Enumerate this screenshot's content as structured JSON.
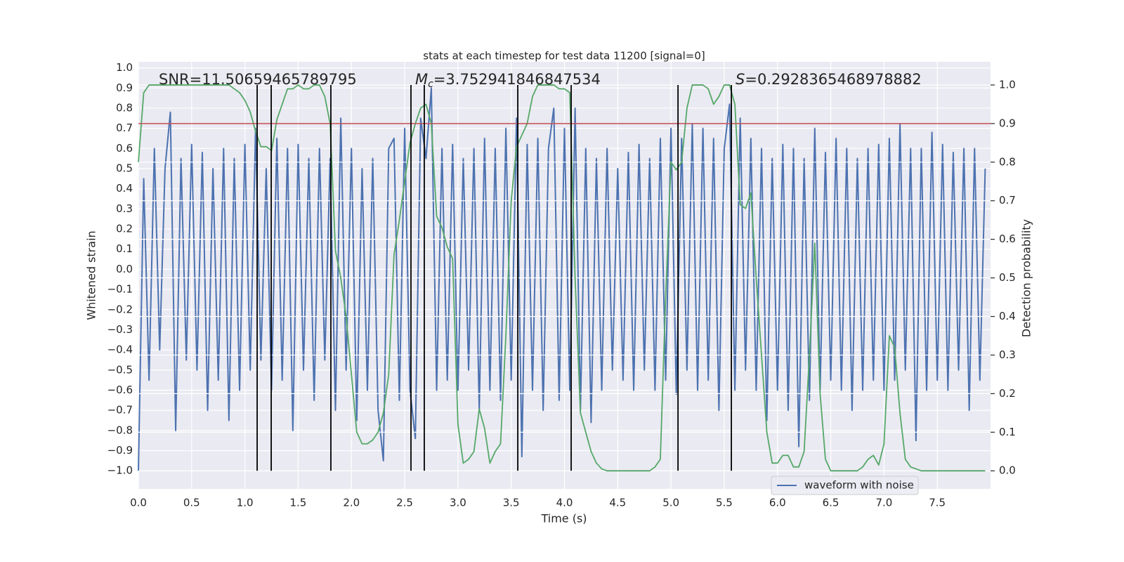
{
  "chart_data": {
    "type": "line",
    "title": "stats at each timestep for test data 11200 [signal=0]",
    "xlabel": "Time (s)",
    "ylabel": "Whitened strain",
    "y2label": "Detection probability",
    "xlim": [
      0,
      8
    ],
    "ylim": [
      -1.09,
      1.03
    ],
    "y2lim": [
      -0.047,
      1.06
    ],
    "xticks": [
      {
        "value": 0,
        "label": "0.0"
      },
      {
        "value": 0.5,
        "label": "0.5"
      },
      {
        "value": 1,
        "label": "1.0"
      },
      {
        "value": 1.5,
        "label": "1.5"
      },
      {
        "value": 2,
        "label": "2.0"
      },
      {
        "value": 2.5,
        "label": "2.5"
      },
      {
        "value": 3,
        "label": "3.0"
      },
      {
        "value": 3.5,
        "label": "3.5"
      },
      {
        "value": 4,
        "label": "4.0"
      },
      {
        "value": 4.5,
        "label": "4.5"
      },
      {
        "value": 5,
        "label": "5.0"
      },
      {
        "value": 5.5,
        "label": "5.5"
      },
      {
        "value": 6,
        "label": "6.0"
      },
      {
        "value": 6.5,
        "label": "6.5"
      },
      {
        "value": 7,
        "label": "7.0"
      },
      {
        "value": 7.5,
        "label": "7.5"
      }
    ],
    "yticks": [
      {
        "value": -1.0,
        "label": "−1.0"
      },
      {
        "value": -0.9,
        "label": "−0.9"
      },
      {
        "value": -0.8,
        "label": "−0.8"
      },
      {
        "value": -0.7,
        "label": "−0.7"
      },
      {
        "value": -0.6,
        "label": "−0.6"
      },
      {
        "value": -0.5,
        "label": "−0.5"
      },
      {
        "value": -0.4,
        "label": "−0.4"
      },
      {
        "value": -0.3,
        "label": "−0.3"
      },
      {
        "value": -0.2,
        "label": "−0.2"
      },
      {
        "value": -0.1,
        "label": "−0.1"
      },
      {
        "value": 0,
        "label": "0.0"
      },
      {
        "value": 0.1,
        "label": "0.1"
      },
      {
        "value": 0.2,
        "label": "0.2"
      },
      {
        "value": 0.3,
        "label": "0.3"
      },
      {
        "value": 0.4,
        "label": "0.4"
      },
      {
        "value": 0.5,
        "label": "0.5"
      },
      {
        "value": 0.6,
        "label": "0.6"
      },
      {
        "value": 0.7,
        "label": "0.7"
      },
      {
        "value": 0.8,
        "label": "0.8"
      },
      {
        "value": 0.9,
        "label": "0.9"
      },
      {
        "value": 1.0,
        "label": "1.0"
      }
    ],
    "y2ticks": [
      {
        "value": 0,
        "label": "0.0"
      },
      {
        "value": 0.1,
        "label": "0.1"
      },
      {
        "value": 0.2,
        "label": "0.2"
      },
      {
        "value": 0.3,
        "label": "0.3"
      },
      {
        "value": 0.4,
        "label": "0.4"
      },
      {
        "value": 0.5,
        "label": "0.5"
      },
      {
        "value": 0.6,
        "label": "0.6"
      },
      {
        "value": 0.7,
        "label": "0.7"
      },
      {
        "value": 0.8,
        "label": "0.8"
      },
      {
        "value": 0.9,
        "label": "0.9"
      },
      {
        "value": 1.0,
        "label": "1.0"
      }
    ],
    "grid": true,
    "legend": "lower right",
    "x": [
      0,
      0.05,
      0.1,
      0.15,
      0.2,
      0.25,
      0.3,
      0.35,
      0.4,
      0.45,
      0.5,
      0.55,
      0.6,
      0.65,
      0.7,
      0.75,
      0.8,
      0.85,
      0.9,
      0.95,
      1,
      1.05,
      1.1,
      1.15,
      1.2,
      1.25,
      1.3,
      1.35,
      1.4,
      1.45,
      1.5,
      1.55,
      1.6,
      1.65,
      1.7,
      1.75,
      1.8,
      1.85,
      1.9,
      1.95,
      2,
      2.05,
      2.1,
      2.15,
      2.2,
      2.25,
      2.3,
      2.35,
      2.4,
      2.45,
      2.5,
      2.55,
      2.6,
      2.65,
      2.7,
      2.75,
      2.8,
      2.85,
      2.9,
      2.95,
      3,
      3.05,
      3.1,
      3.15,
      3.2,
      3.25,
      3.3,
      3.35,
      3.4,
      3.45,
      3.5,
      3.55,
      3.6,
      3.65,
      3.7,
      3.75,
      3.8,
      3.85,
      3.9,
      3.95,
      4,
      4.05,
      4.1,
      4.15,
      4.2,
      4.25,
      4.3,
      4.35,
      4.4,
      4.45,
      4.5,
      4.55,
      4.6,
      4.65,
      4.7,
      4.75,
      4.8,
      4.85,
      4.9,
      4.95,
      5,
      5.05,
      5.1,
      5.15,
      5.2,
      5.25,
      5.3,
      5.35,
      5.4,
      5.45,
      5.5,
      5.55,
      5.6,
      5.65,
      5.7,
      5.75,
      5.8,
      5.85,
      5.9,
      5.95,
      6,
      6.05,
      6.1,
      6.15,
      6.2,
      6.25,
      6.3,
      6.35,
      6.4,
      6.45,
      6.5,
      6.55,
      6.6,
      6.65,
      6.7,
      6.75,
      6.8,
      6.85,
      6.9,
      6.95,
      7,
      7.05,
      7.1,
      7.15,
      7.2,
      7.25,
      7.3,
      7.35,
      7.4,
      7.45,
      7.5,
      7.55,
      7.6,
      7.65,
      7.7,
      7.75,
      7.8,
      7.85,
      7.9,
      7.95
    ],
    "series": [
      {
        "name": "waveform with noise",
        "color": "#4c72b0",
        "values": [
          -1.0,
          0.45,
          -0.55,
          0.6,
          -0.4,
          0.5,
          0.78,
          -0.8,
          0.55,
          -0.45,
          0.62,
          -0.5,
          0.58,
          -0.7,
          0.5,
          -0.55,
          0.6,
          -0.75,
          0.55,
          -0.6,
          0.62,
          -0.5,
          0.7,
          -0.45,
          0.5,
          -0.6,
          0.65,
          -0.55,
          0.6,
          -0.8,
          0.62,
          -0.5,
          0.55,
          -0.65,
          0.6,
          -0.45,
          0.55,
          -0.7,
          0.75,
          -0.5,
          0.6,
          -0.75,
          0.5,
          -0.6,
          0.55,
          -0.7,
          -0.95,
          0.6,
          0.65,
          -0.65,
          0.7,
          -0.6,
          -0.84,
          0.75,
          0.55,
          0.9,
          -0.6,
          0.6,
          -0.55,
          0.62,
          -0.6,
          0.55,
          -0.5,
          0.6,
          -0.7,
          0.65,
          -0.6,
          0.6,
          -0.65,
          0.7,
          -0.55,
          0.75,
          -0.93,
          0.62,
          -0.6,
          0.65,
          -0.7,
          0.6,
          0.8,
          -0.65,
          0.7,
          -0.6,
          0.8,
          -0.7,
          0.6,
          -0.76,
          0.55,
          -0.6,
          0.6,
          -0.5,
          0.5,
          -0.55,
          0.58,
          -0.6,
          0.62,
          -0.5,
          0.55,
          -0.6,
          0.65,
          -0.55,
          0.7,
          -0.62,
          0.65,
          -0.5,
          0.72,
          -0.6,
          0.7,
          -0.55,
          0.65,
          -0.7,
          0.6,
          0.82,
          -0.6,
          0.75,
          -0.5,
          0.65,
          -0.6,
          0.6,
          -0.75,
          0.55,
          -0.6,
          0.62,
          -0.7,
          0.6,
          -0.88,
          0.55,
          -0.65,
          0.7,
          -0.6,
          0.58,
          -0.55,
          0.65,
          -0.6,
          0.6,
          -0.7,
          0.55,
          -0.6,
          0.6,
          -0.55,
          0.62,
          -0.6,
          0.65,
          -0.55,
          0.72,
          -0.5,
          0.6,
          -0.85,
          0.6,
          -0.6,
          0.68,
          -0.55,
          0.62,
          -0.6,
          0.58,
          -0.5,
          0.6,
          -0.7,
          0.6,
          -0.55,
          0.5
        ]
      },
      {
        "color": "#55a868",
        "axis": "y2",
        "values": [
          0.8,
          0.98,
          1.0,
          1.0,
          1.0,
          1.0,
          1.0,
          1.0,
          1.0,
          1.0,
          1.0,
          1.0,
          1.0,
          1.0,
          1.0,
          1.0,
          1.0,
          1.0,
          0.99,
          0.98,
          0.96,
          0.93,
          0.88,
          0.84,
          0.84,
          0.83,
          0.91,
          0.95,
          0.99,
          0.99,
          1.0,
          0.99,
          0.99,
          1.0,
          1.0,
          0.97,
          0.9,
          0.57,
          0.5,
          0.4,
          0.25,
          0.1,
          0.07,
          0.07,
          0.08,
          0.1,
          0.15,
          0.25,
          0.56,
          0.65,
          0.75,
          0.85,
          0.9,
          0.94,
          0.95,
          0.9,
          0.66,
          0.63,
          0.58,
          0.55,
          0.12,
          0.02,
          0.03,
          0.05,
          0.16,
          0.11,
          0.02,
          0.05,
          0.07,
          0.35,
          0.7,
          0.84,
          0.87,
          0.9,
          0.97,
          1.0,
          1.0,
          1.0,
          1.0,
          0.99,
          0.99,
          0.98,
          0.5,
          0.15,
          0.1,
          0.05,
          0.02,
          0.005,
          0,
          0,
          0,
          0,
          0,
          0,
          0,
          0,
          0,
          0.01,
          0.03,
          0.45,
          0.8,
          0.78,
          0.8,
          0.94,
          1.0,
          1.0,
          1.0,
          0.99,
          0.95,
          0.97,
          1.0,
          1.0,
          0.95,
          0.69,
          0.68,
          0.72,
          0.5,
          0.3,
          0.1,
          0.02,
          0.02,
          0.04,
          0.04,
          0.01,
          0.01,
          0.05,
          0.3,
          0.59,
          0.2,
          0.03,
          0,
          0,
          0,
          0,
          0,
          0,
          0.01,
          0.03,
          0.04,
          0.015,
          0.07,
          0.35,
          0.32,
          0.15,
          0.03,
          0.01,
          0.005,
          0,
          0,
          0,
          0,
          0,
          0,
          0,
          0,
          0,
          0,
          0,
          0,
          0
        ]
      }
    ],
    "hline": {
      "y": 0.9,
      "axis": "y2",
      "color": "#c44e52"
    },
    "vlines": {
      "x": [
        1.115,
        1.247,
        1.807,
        2.559,
        2.684,
        3.562,
        4.063,
        5.066,
        5.567
      ],
      "ymin": 0,
      "ymax": 1,
      "axis": "y2",
      "color": "#000000"
    },
    "annotations": [
      {
        "text": "SNR=11.50659465789795"
      },
      {
        "symbol": "M",
        "subscript": "c",
        "text": "=3.752941846847534"
      },
      {
        "symbol": "S",
        "text": "=0.2928365468978882"
      }
    ]
  }
}
